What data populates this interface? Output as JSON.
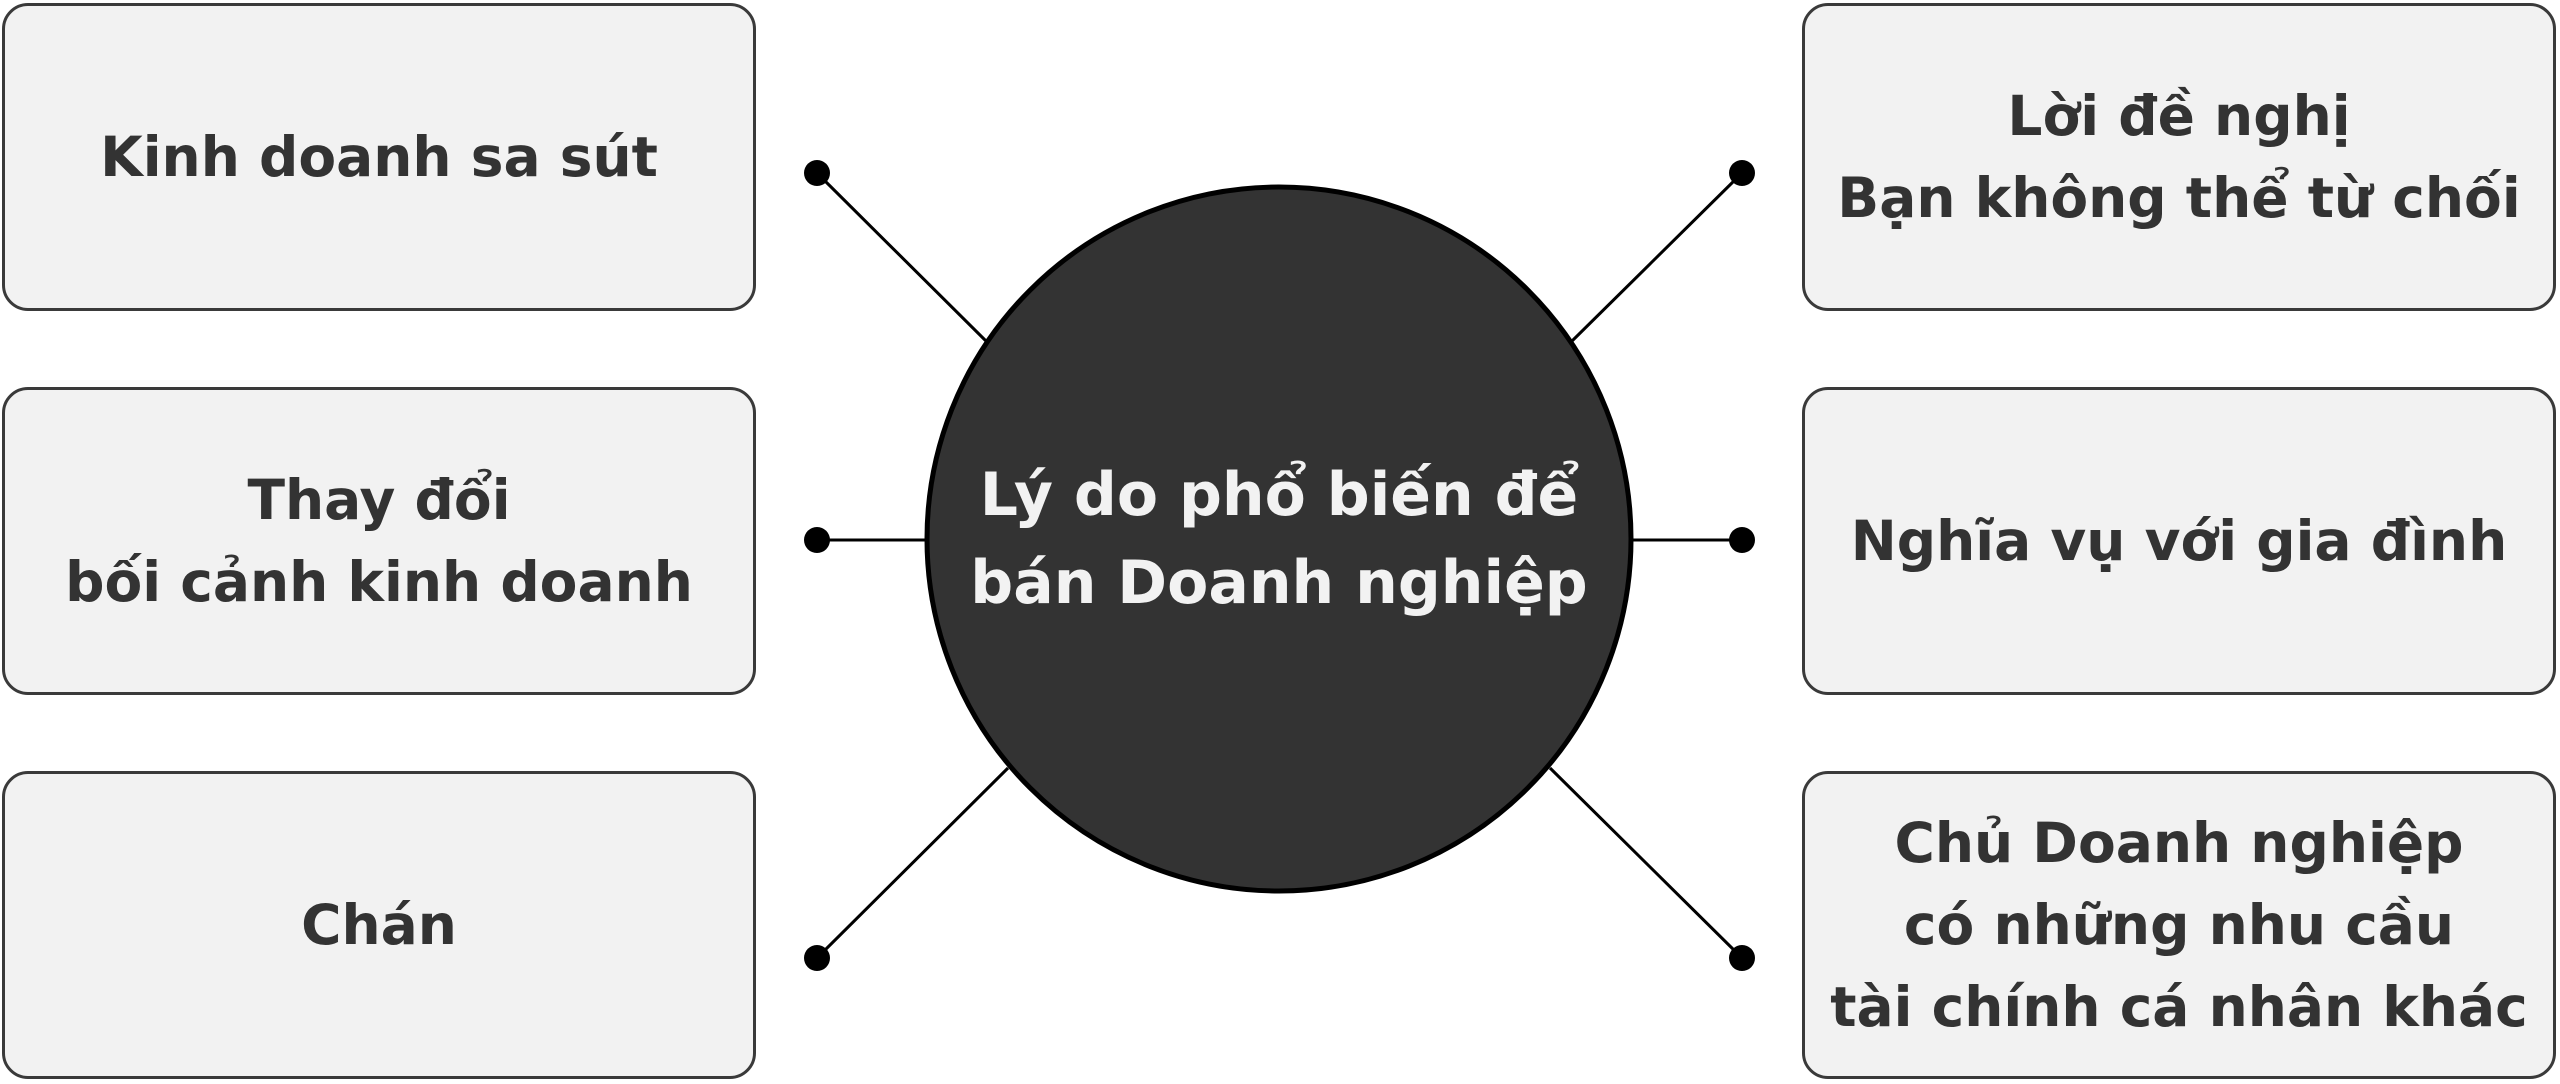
{
  "center": {
    "lines": [
      "Lý do phổ biến để",
      "bán Doanh nghiệp"
    ]
  },
  "left_reasons": [
    {
      "lines": [
        "Kinh doanh sa sút"
      ]
    },
    {
      "lines": [
        "Thay đổi",
        "bối cảnh kinh doanh"
      ]
    },
    {
      "lines": [
        "Chán"
      ]
    }
  ],
  "right_reasons": [
    {
      "lines": [
        "Lời đề nghị",
        "Bạn không thể từ chối"
      ]
    },
    {
      "lines": [
        "Nghĩa vụ với gia đình"
      ]
    },
    {
      "lines": [
        "Chủ Doanh nghiệp",
        "có những nhu cầu",
        "tài chính cá nhân khác"
      ]
    }
  ],
  "colors": {
    "circle_fill": "#333333",
    "circle_stroke": "#000000",
    "box_fill": "#f2f2f2",
    "box_border": "#3a3a3a",
    "connector": "#000000",
    "text_dark": "#333333",
    "text_light": "#f2f2f2"
  }
}
